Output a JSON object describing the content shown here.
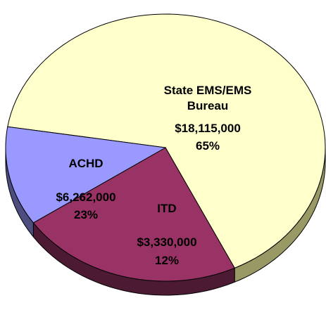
{
  "chart_data": {
    "type": "pie",
    "categories": [
      "State EMS/EMS Bureau",
      "ACHD",
      "ITD"
    ],
    "values": [
      18115000,
      6262000,
      3330000
    ],
    "value_labels": [
      "$18,115,000",
      "$6,262,000",
      "$3,330,000"
    ],
    "percent_labels": [
      "65%",
      "23%",
      "12%"
    ],
    "colors": [
      "#ffffcc",
      "#993366",
      "#9999ff"
    ],
    "side_colors": [
      "#999966",
      "#4d1a33",
      "#4d4d80"
    ],
    "three_d": true
  }
}
